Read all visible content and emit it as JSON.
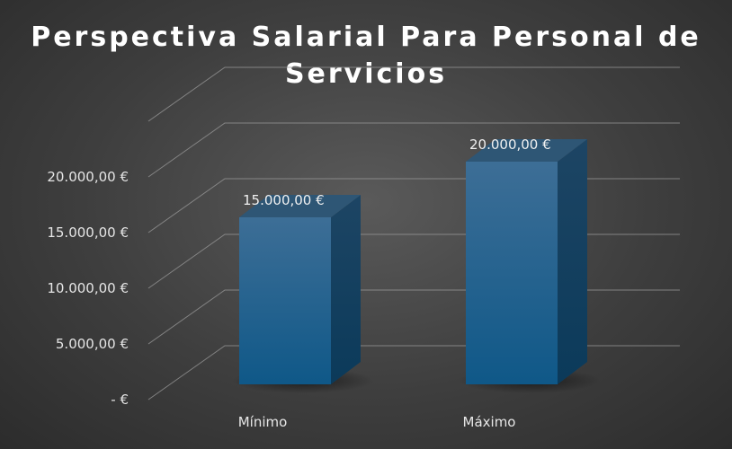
{
  "chart_data": {
    "type": "bar",
    "title_lines": [
      "Perspectiva Salarial Para Personal de",
      "Servicios"
    ],
    "categories": [
      "Mínimo",
      "Máximo"
    ],
    "values": [
      15000,
      20000
    ],
    "data_labels": [
      "15.000,00 €",
      "20.000,00 €"
    ],
    "y_ticks": [
      0,
      5000,
      10000,
      15000,
      20000
    ],
    "y_tick_labels": [
      "-  €",
      "5.000,00 €",
      "10.000,00 €",
      "15.000,00 €",
      "20.000,00 €"
    ],
    "ylim": [
      0,
      25000
    ],
    "grid": true,
    "bar_color": "#1f5f8b",
    "style": "3d-column"
  }
}
